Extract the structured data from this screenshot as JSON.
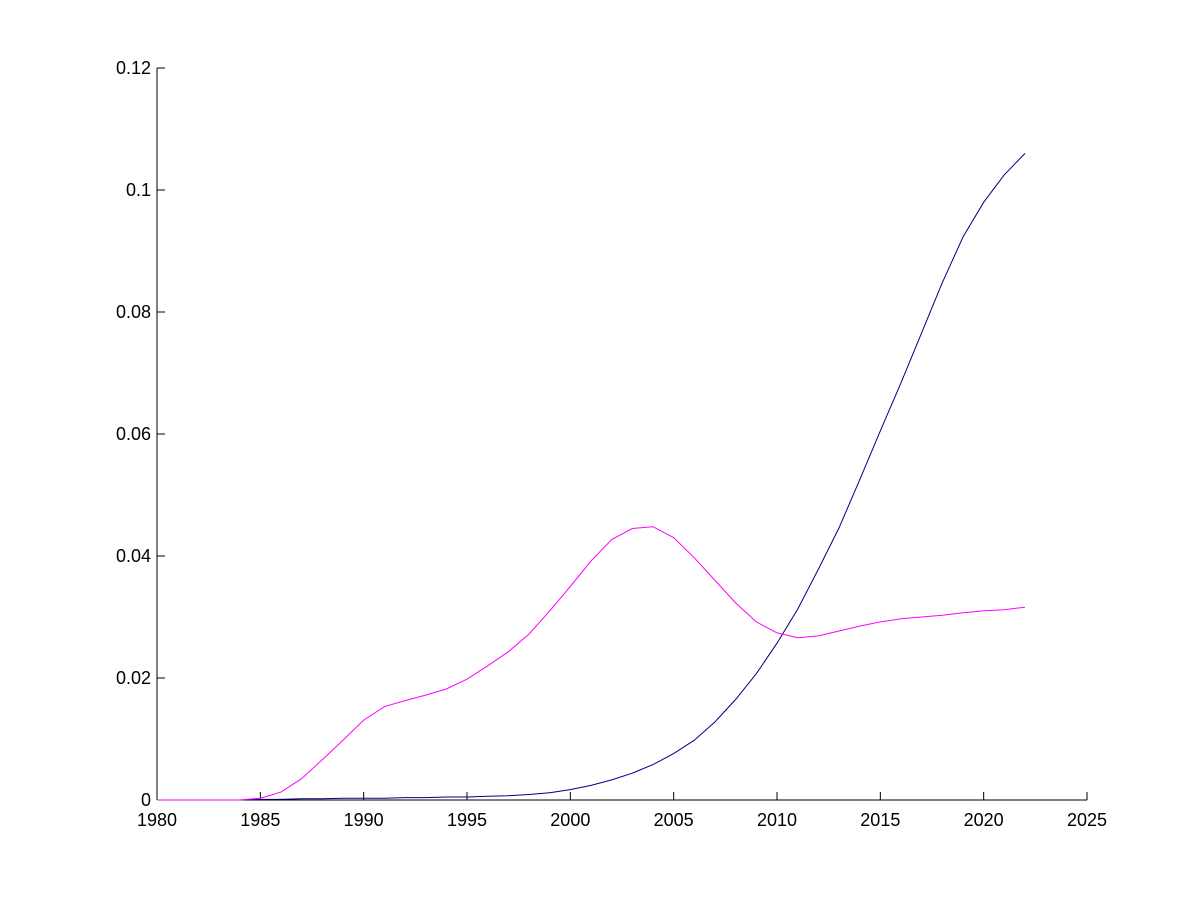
{
  "chart_data": {
    "type": "line",
    "title": "",
    "xlabel": "",
    "ylabel": "",
    "xlim": [
      1980,
      2025
    ],
    "ylim": [
      0,
      0.12
    ],
    "grid": false,
    "x_ticks": [
      1980,
      1985,
      1990,
      1995,
      2000,
      2005,
      2010,
      2015,
      2020,
      2025
    ],
    "x_tick_labels": [
      "1980",
      "1985",
      "1990",
      "1995",
      "2000",
      "2005",
      "2010",
      "2015",
      "2020",
      "2025"
    ],
    "y_ticks": [
      0,
      0.02,
      0.04,
      0.06,
      0.08,
      0.1,
      0.12
    ],
    "y_tick_labels": [
      "0",
      "0.02",
      "0.04",
      "0.06",
      "0.08",
      "0.1",
      "0.12"
    ],
    "series": [
      {
        "color": "#000080",
        "x": [
          1980,
          1981,
          1982,
          1983,
          1984,
          1985,
          1986,
          1987,
          1988,
          1989,
          1990,
          1991,
          1992,
          1993,
          1994,
          1995,
          1996,
          1997,
          1998,
          1999,
          2000,
          2001,
          2002,
          2003,
          2004,
          2005,
          2006,
          2007,
          2008,
          2009,
          2010,
          2011,
          2012,
          2013,
          2014,
          2015,
          2016,
          2017,
          2018,
          2019,
          2020,
          2021,
          2022
        ],
        "values": [
          0,
          0,
          0,
          0,
          0,
          0.0001,
          0.0001,
          0.0002,
          0.0002,
          0.0003,
          0.0003,
          0.0003,
          0.0004,
          0.0004,
          0.0005,
          0.0005,
          0.0006,
          0.0007,
          0.0009,
          0.0012,
          0.0017,
          0.0024,
          0.0033,
          0.0044,
          0.0058,
          0.0076,
          0.0098,
          0.0128,
          0.0165,
          0.0207,
          0.0257,
          0.0313,
          0.0378,
          0.0446,
          0.0525,
          0.0605,
          0.0684,
          0.0766,
          0.0848,
          0.0923,
          0.098,
          0.1025,
          0.106
        ]
      },
      {
        "color": "#ff00ff",
        "x": [
          1980,
          1981,
          1982,
          1983,
          1984,
          1985,
          1986,
          1987,
          1988,
          1989,
          1990,
          1991,
          1992,
          1993,
          1994,
          1995,
          1996,
          1997,
          1998,
          1999,
          2000,
          2001,
          2002,
          2003,
          2004,
          2005,
          2006,
          2007,
          2008,
          2009,
          2010,
          2011,
          2012,
          2013,
          2014,
          2015,
          2016,
          2017,
          2018,
          2019,
          2020,
          2021,
          2022
        ],
        "values": [
          0,
          0,
          0,
          0,
          0,
          0.0003,
          0.0013,
          0.0035,
          0.0066,
          0.0098,
          0.0131,
          0.0153,
          0.0163,
          0.0172,
          0.0182,
          0.0198,
          0.022,
          0.0243,
          0.0272,
          0.031,
          0.035,
          0.0392,
          0.0427,
          0.0445,
          0.0448,
          0.043,
          0.0397,
          0.036,
          0.0323,
          0.0292,
          0.0274,
          0.0266,
          0.0269,
          0.0277,
          0.0285,
          0.0292,
          0.0297,
          0.03,
          0.0303,
          0.0307,
          0.031,
          0.0312,
          0.0316
        ]
      }
    ]
  }
}
